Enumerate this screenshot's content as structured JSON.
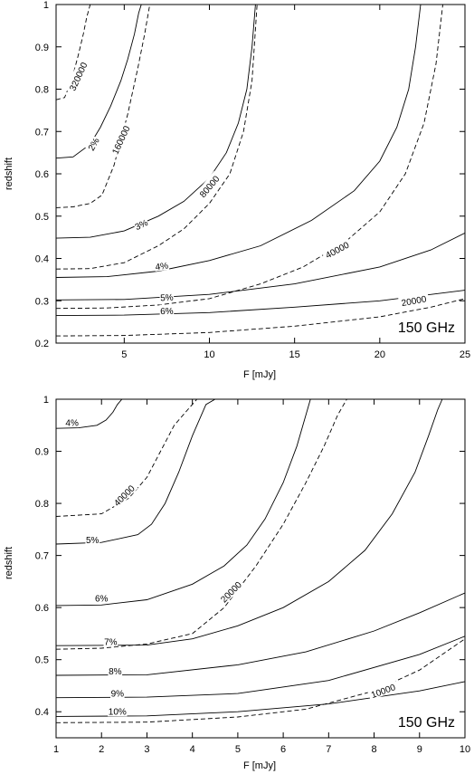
{
  "chart_data": [
    {
      "type": "line",
      "annotation": "150 GHz",
      "xlabel": "F [mJy]",
      "ylabel": "redshift",
      "xlim": [
        1,
        25
      ],
      "ylim": [
        0.2,
        1.0
      ],
      "xticks": [
        "5",
        "10",
        "15",
        "20",
        "25"
      ],
      "yticks": [
        "0.2",
        "0.3",
        "0.4",
        "0.5",
        "0.6",
        "0.7",
        "0.8",
        "0.9",
        "1"
      ],
      "grid": false,
      "legend": "none",
      "series": [
        {
          "name": "2%",
          "style": "solid",
          "label_at": [
            3.2,
            0.67
          ],
          "label_angle": -60,
          "x": [
            1.0,
            2.0,
            3.0,
            3.6,
            4.2,
            4.8,
            5.2,
            5.6,
            5.85,
            6.0
          ],
          "y": [
            0.637,
            0.64,
            0.67,
            0.71,
            0.76,
            0.82,
            0.87,
            0.93,
            0.98,
            1.0
          ]
        },
        {
          "name": "3%",
          "style": "solid",
          "label_at": [
            6.0,
            0.48
          ],
          "label_angle": -25,
          "x": [
            1.0,
            3.0,
            5.0,
            7.0,
            8.5,
            10.0,
            11.0,
            11.7,
            12.2,
            12.5,
            12.7
          ],
          "y": [
            0.448,
            0.45,
            0.465,
            0.5,
            0.535,
            0.59,
            0.65,
            0.72,
            0.8,
            0.9,
            1.0
          ]
        },
        {
          "name": "4%",
          "style": "solid",
          "label_at": [
            7.2,
            0.382
          ],
          "label_angle": -8,
          "x": [
            1.0,
            4.0,
            7.0,
            10.0,
            13.0,
            16.0,
            18.5,
            20.0,
            21.0,
            21.7,
            22.1,
            22.4
          ],
          "y": [
            0.355,
            0.357,
            0.37,
            0.395,
            0.43,
            0.49,
            0.56,
            0.63,
            0.71,
            0.8,
            0.9,
            1.0
          ]
        },
        {
          "name": "5%",
          "style": "solid",
          "label_at": [
            7.5,
            0.308
          ],
          "label_angle": -3,
          "x": [
            1.0,
            5.0,
            10.0,
            15.0,
            20.0,
            23.0,
            25.0
          ],
          "y": [
            0.302,
            0.303,
            0.315,
            0.34,
            0.38,
            0.42,
            0.46
          ]
        },
        {
          "name": "6%",
          "style": "solid",
          "label_at": [
            7.5,
            0.276
          ],
          "label_angle": -1,
          "x": [
            1.0,
            5.0,
            10.0,
            15.0,
            20.0,
            25.0
          ],
          "y": [
            0.265,
            0.266,
            0.272,
            0.285,
            0.3,
            0.325
          ]
        },
        {
          "name": "320000",
          "style": "dashed",
          "label_at": [
            2.3,
            0.83
          ],
          "label_angle": -65,
          "x": [
            1.0,
            1.5,
            1.9,
            2.3,
            2.6,
            2.8,
            3.0
          ],
          "y": [
            0.775,
            0.78,
            0.82,
            0.88,
            0.93,
            0.97,
            1.0
          ]
        },
        {
          "name": "160000",
          "style": "dashed",
          "label_at": [
            4.8,
            0.68
          ],
          "label_angle": -65,
          "x": [
            1.0,
            2.0,
            3.0,
            3.7,
            4.4,
            5.2,
            5.8,
            6.2,
            6.5
          ],
          "y": [
            0.52,
            0.522,
            0.53,
            0.55,
            0.62,
            0.74,
            0.85,
            0.93,
            1.0
          ]
        },
        {
          "name": "80000",
          "style": "dashed",
          "label_at": [
            10.0,
            0.57
          ],
          "label_angle": -50,
          "x": [
            1.0,
            3.0,
            5.0,
            7.0,
            8.5,
            10.0,
            11.2,
            12.0,
            12.5,
            12.8
          ],
          "y": [
            0.375,
            0.376,
            0.39,
            0.43,
            0.47,
            0.53,
            0.6,
            0.7,
            0.82,
            1.0
          ]
        },
        {
          "name": "40000",
          "style": "dashed",
          "label_at": [
            17.5,
            0.42
          ],
          "label_angle": -28,
          "x": [
            1.0,
            4.0,
            7.0,
            10.0,
            13.0,
            15.5,
            18.0,
            20.0,
            21.5,
            22.6,
            23.3,
            23.7
          ],
          "y": [
            0.282,
            0.283,
            0.29,
            0.305,
            0.34,
            0.38,
            0.44,
            0.51,
            0.6,
            0.72,
            0.86,
            1.0
          ]
        },
        {
          "name": "20000",
          "style": "dashed",
          "label_at": [
            22.0,
            0.3
          ],
          "label_angle": -10,
          "x": [
            1.0,
            5.0,
            10.0,
            15.0,
            20.0,
            23.0,
            25.0
          ],
          "y": [
            0.217,
            0.218,
            0.225,
            0.24,
            0.262,
            0.285,
            0.305
          ]
        }
      ]
    },
    {
      "type": "line",
      "annotation": "150 GHz",
      "xlabel": "F [mJy]",
      "ylabel": "redshift",
      "xlim": [
        1,
        10
      ],
      "ylim": [
        0.35,
        1.0
      ],
      "xticks": [
        "1",
        "2",
        "3",
        "4",
        "5",
        "6",
        "7",
        "8",
        "9",
        "10"
      ],
      "yticks": [
        "0.4",
        "0.5",
        "0.6",
        "0.7",
        "0.8",
        "0.9",
        "1"
      ],
      "grid": false,
      "legend": "none",
      "series": [
        {
          "name": "4%",
          "style": "solid",
          "label_at": [
            1.35,
            0.955
          ],
          "label_angle": 0,
          "x": [
            1.0,
            1.5,
            1.9,
            2.1,
            2.25,
            2.35,
            2.45,
            2.5
          ],
          "y": [
            0.944,
            0.945,
            0.95,
            0.96,
            0.975,
            0.99,
            1.0,
            1.0
          ]
        },
        {
          "name": "5%",
          "style": "solid",
          "label_at": [
            1.8,
            0.73
          ],
          "label_angle": 0,
          "x": [
            1.0,
            2.0,
            2.8,
            3.1,
            3.4,
            3.7,
            4.0,
            4.3,
            4.5
          ],
          "y": [
            0.722,
            0.725,
            0.74,
            0.76,
            0.8,
            0.86,
            0.93,
            0.99,
            1.0
          ]
        },
        {
          "name": "6%",
          "style": "solid",
          "label_at": [
            2.0,
            0.618
          ],
          "label_angle": 0,
          "x": [
            1.0,
            2.0,
            3.0,
            4.0,
            4.7,
            5.2,
            5.6,
            6.0,
            6.3,
            6.5,
            6.6
          ],
          "y": [
            0.604,
            0.605,
            0.615,
            0.645,
            0.68,
            0.72,
            0.77,
            0.84,
            0.91,
            0.97,
            1.0
          ]
        },
        {
          "name": "7%",
          "style": "solid",
          "label_at": [
            2.2,
            0.534
          ],
          "label_angle": 0,
          "x": [
            1.0,
            3.0,
            4.0,
            5.0,
            6.0,
            7.0,
            7.8,
            8.4,
            8.9,
            9.2,
            9.4,
            9.5
          ],
          "y": [
            0.527,
            0.528,
            0.54,
            0.565,
            0.6,
            0.65,
            0.71,
            0.78,
            0.86,
            0.93,
            0.98,
            1.0
          ]
        },
        {
          "name": "8%",
          "style": "solid",
          "label_at": [
            2.3,
            0.478
          ],
          "label_angle": 0,
          "x": [
            1.0,
            3.0,
            5.0,
            6.5,
            8.0,
            9.0,
            10.0
          ],
          "y": [
            0.47,
            0.471,
            0.49,
            0.515,
            0.555,
            0.59,
            0.628
          ]
        },
        {
          "name": "9%",
          "style": "solid",
          "label_at": [
            2.35,
            0.435
          ],
          "label_angle": 0,
          "x": [
            1.0,
            3.0,
            5.0,
            7.0,
            9.0,
            10.0
          ],
          "y": [
            0.427,
            0.428,
            0.435,
            0.46,
            0.51,
            0.545
          ]
        },
        {
          "name": "10%",
          "style": "solid",
          "label_at": [
            2.35,
            0.4
          ],
          "label_angle": 0,
          "x": [
            1.0,
            3.0,
            5.0,
            7.0,
            9.0,
            10.0
          ],
          "y": [
            0.391,
            0.392,
            0.4,
            0.415,
            0.44,
            0.458
          ]
        },
        {
          "name": "40000",
          "style": "dashed",
          "label_at": [
            2.5,
            0.815
          ],
          "label_angle": -45,
          "x": [
            1.0,
            2.0,
            2.6,
            3.0,
            3.3,
            3.6,
            3.9,
            4.1,
            4.25
          ],
          "y": [
            0.775,
            0.78,
            0.81,
            0.85,
            0.9,
            0.95,
            0.98,
            1.0,
            1.0
          ]
        },
        {
          "name": "20000",
          "style": "dashed",
          "label_at": [
            4.85,
            0.63
          ],
          "label_angle": -45,
          "x": [
            1.0,
            2.0,
            3.0,
            4.0,
            4.7,
            5.4,
            6.0,
            6.5,
            6.9,
            7.2,
            7.4
          ],
          "y": [
            0.52,
            0.522,
            0.53,
            0.55,
            0.6,
            0.68,
            0.76,
            0.84,
            0.91,
            0.97,
            1.0
          ]
        },
        {
          "name": "10000",
          "style": "dashed",
          "label_at": [
            8.2,
            0.44
          ],
          "label_angle": -20,
          "x": [
            1.0,
            3.0,
            5.0,
            6.5,
            8.0,
            9.0,
            10.0
          ],
          "y": [
            0.379,
            0.38,
            0.39,
            0.405,
            0.44,
            0.48,
            0.54
          ]
        }
      ]
    }
  ]
}
